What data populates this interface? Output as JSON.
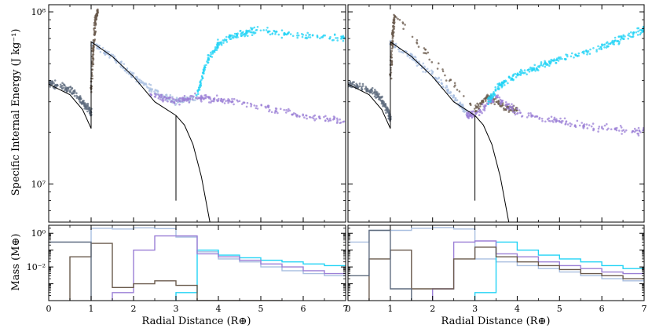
{
  "figure": {
    "ylabel_top": "Specific Internal Energy (J kg⁻¹)",
    "ylabel_bottom": "Mass (M⊕)",
    "xlabel": "Radial Distance (R⊕)"
  },
  "colors": {
    "cyan": "#22d3f5",
    "purple": "#9b7fd6",
    "lightblue": "#a9bfe0",
    "brown": "#6a5a4c",
    "slate": "#5e6b7e",
    "black": "#000000"
  },
  "chart_data": [
    {
      "type": "scatter",
      "panel": "top-left",
      "xlim": [
        0,
        7
      ],
      "ylim": [
        6000000,
        110000000
      ],
      "yscale": "log",
      "ylabel": "Specific Internal Energy (J kg⁻¹)",
      "yticks": [
        {
          "value": 10000000,
          "label": "10⁷"
        },
        {
          "value": 100000000,
          "label": "10⁸"
        }
      ],
      "series": [
        {
          "color_key": "slate",
          "points": [
            [
              0,
              38000000
            ],
            [
              0.3,
              37000000
            ],
            [
              0.6,
              34000000
            ],
            [
              0.85,
              29000000
            ],
            [
              1.0,
              26000000
            ]
          ]
        },
        {
          "color_key": "lightblue",
          "points": [
            [
              1.0,
              66000000
            ],
            [
              1.5,
              55000000
            ],
            [
              2.0,
              42000000
            ],
            [
              2.5,
              34000000
            ],
            [
              3.0,
              30000000
            ],
            [
              3.5,
              32000000
            ]
          ]
        },
        {
          "color_key": "brown",
          "points": [
            [
              1.0,
              35000000
            ],
            [
              1.05,
              60000000
            ],
            [
              1.1,
              90000000
            ],
            [
              1.15,
              100000000
            ]
          ]
        },
        {
          "color_key": "purple",
          "points": [
            [
              2.4,
              33000000
            ],
            [
              3.0,
              30000000
            ],
            [
              3.5,
              32000000
            ],
            [
              4.0,
              31000000
            ],
            [
              5.0,
              28000000
            ],
            [
              6.0,
              25000000
            ],
            [
              7.0,
              23000000
            ]
          ]
        },
        {
          "color_key": "cyan",
          "points": [
            [
              3.5,
              32000000
            ],
            [
              3.7,
              50000000
            ],
            [
              4.0,
              65000000
            ],
            [
              4.5,
              75000000
            ],
            [
              5.0,
              78000000
            ],
            [
              6.0,
              72000000
            ],
            [
              7.0,
              70000000
            ]
          ]
        }
      ],
      "reference_curves": [
        {
          "color_key": "black",
          "points": [
            [
              0,
              38000000
            ],
            [
              0.5,
              33000000
            ],
            [
              0.8,
              27000000
            ],
            [
              1.0,
              21000000
            ],
            [
              1.0,
              67000000
            ],
            [
              1.5,
              55000000
            ],
            [
              2.0,
              42000000
            ],
            [
              2.5,
              30000000
            ],
            [
              3.0,
              25000000
            ],
            [
              3.0,
              8000000
            ]
          ]
        },
        {
          "color_key": "black",
          "points": [
            [
              3.0,
              25000000
            ],
            [
              3.2,
              22000000
            ],
            [
              3.4,
              17000000
            ],
            [
              3.6,
              11000000
            ],
            [
              3.8,
              6000000
            ]
          ]
        }
      ]
    },
    {
      "type": "scatter",
      "panel": "top-right",
      "xlim": [
        0,
        7
      ],
      "ylim": [
        6000000,
        110000000
      ],
      "yscale": "log",
      "series": [
        {
          "color_key": "slate",
          "points": [
            [
              0,
              38000000
            ],
            [
              0.4,
              36000000
            ],
            [
              0.7,
              33000000
            ],
            [
              0.9,
              28000000
            ],
            [
              1.0,
              24000000
            ]
          ]
        },
        {
          "color_key": "lightblue",
          "points": [
            [
              1.0,
              66000000
            ],
            [
              1.5,
              55000000
            ],
            [
              2.0,
              43000000
            ],
            [
              2.5,
              32000000
            ],
            [
              2.8,
              26000000
            ]
          ]
        },
        {
          "color_key": "brown",
          "points": [
            [
              1.0,
              40000000
            ],
            [
              1.05,
              70000000
            ],
            [
              1.1,
              95000000
            ],
            [
              3.0,
              27000000
            ],
            [
              3.3,
              32000000
            ],
            [
              3.7,
              28000000
            ],
            [
              4.0,
              27000000
            ]
          ]
        },
        {
          "color_key": "purple",
          "points": [
            [
              2.8,
              25000000
            ],
            [
              3.0,
              25000000
            ],
            [
              3.5,
              32000000
            ],
            [
              4.0,
              26000000
            ],
            [
              5.0,
              23000000
            ],
            [
              6.0,
              21000000
            ],
            [
              7.0,
              20000000
            ]
          ]
        },
        {
          "color_key": "cyan",
          "points": [
            [
              3.3,
              30000000
            ],
            [
              3.6,
              38000000
            ],
            [
              4.0,
              43000000
            ],
            [
              4.5,
              48000000
            ],
            [
              5.0,
              53000000
            ],
            [
              6.0,
              62000000
            ],
            [
              6.5,
              70000000
            ],
            [
              7.0,
              80000000
            ]
          ]
        }
      ],
      "reference_curves": [
        {
          "color_key": "black",
          "points": [
            [
              0,
              38000000
            ],
            [
              0.5,
              33000000
            ],
            [
              0.8,
              27000000
            ],
            [
              1.0,
              21000000
            ],
            [
              1.0,
              67000000
            ],
            [
              1.5,
              55000000
            ],
            [
              2.0,
              42000000
            ],
            [
              2.5,
              30000000
            ],
            [
              3.0,
              25000000
            ],
            [
              3.0,
              8000000
            ]
          ]
        },
        {
          "color_key": "black",
          "points": [
            [
              3.0,
              25000000
            ],
            [
              3.2,
              22000000
            ],
            [
              3.4,
              17000000
            ],
            [
              3.6,
              11000000
            ],
            [
              3.8,
              6000000
            ]
          ]
        }
      ]
    },
    {
      "type": "line",
      "panel": "bottom-left",
      "step": true,
      "xlim": [
        0,
        7
      ],
      "ylim": [
        0.0001,
        3
      ],
      "yscale": "log",
      "xlabel": "Radial Distance (R⊕)",
      "ylabel": "Mass (M⊕)",
      "xticks": [
        "0",
        "1",
        "2",
        "3",
        "4",
        "5",
        "6",
        "7"
      ],
      "yticks": [
        {
          "value": 0.01,
          "label": "10⁻²"
        },
        {
          "value": 1,
          "label": "10⁰"
        }
      ],
      "bin_edges": [
        0,
        0.5,
        1,
        1.5,
        2,
        2.5,
        3,
        3.5,
        4,
        4.5,
        5,
        5.5,
        6,
        6.5,
        7
      ],
      "series": [
        {
          "color_key": "lightblue",
          "values": [
            0.3,
            0.3,
            2.0,
            1.8,
            2.1,
            1.9,
            0.6,
            0.08,
            0.03,
            0.02,
            0.01,
            0.006,
            0.004,
            0.003
          ]
        },
        {
          "color_key": "cyan",
          "values": [
            null,
            null,
            null,
            null,
            null,
            null,
            0.0003,
            0.1,
            0.05,
            0.035,
            0.025,
            0.02,
            0.015,
            0.012
          ]
        },
        {
          "color_key": "purple",
          "values": [
            null,
            null,
            null,
            0.0003,
            0.1,
            0.7,
            0.7,
            0.06,
            0.04,
            0.025,
            0.015,
            0.01,
            0.006,
            0.004
          ]
        },
        {
          "color_key": "brown",
          "values": [
            null,
            0.04,
            0.25,
            0.0006,
            0.001,
            0.0015,
            0.0008,
            0.0001,
            0.0001,
            0.0001,
            0.0001,
            null,
            null,
            null
          ]
        },
        {
          "color_key": "slate",
          "values": [
            0.3,
            0.3,
            null,
            null,
            null,
            null,
            null,
            null,
            null,
            null,
            null,
            null,
            null,
            null
          ]
        }
      ]
    },
    {
      "type": "line",
      "panel": "bottom-right",
      "step": true,
      "xlim": [
        0,
        7
      ],
      "ylim": [
        0.0001,
        3
      ],
      "yscale": "log",
      "xlabel": "Radial Distance (R⊕)",
      "xticks": [
        "0",
        "1",
        "2",
        "3",
        "4",
        "5",
        "6",
        "7"
      ],
      "bin_edges": [
        0,
        0.5,
        1,
        1.5,
        2,
        2.5,
        3,
        3.5,
        4,
        4.5,
        5,
        5.5,
        6,
        6.5,
        7
      ],
      "series": [
        {
          "color_key": "lightblue",
          "values": [
            0.3,
            1.5,
            1.5,
            2.0,
            2.2,
            1.8,
            0.03,
            0.02,
            0.012,
            0.008,
            0.005,
            0.003,
            0.002,
            0.0015
          ]
        },
        {
          "color_key": "cyan",
          "values": [
            null,
            null,
            null,
            null,
            null,
            null,
            0.0003,
            0.3,
            0.1,
            0.05,
            0.03,
            0.02,
            0.012,
            0.008
          ]
        },
        {
          "color_key": "purple",
          "values": [
            null,
            null,
            null,
            null,
            0.0005,
            0.3,
            0.35,
            0.06,
            0.04,
            0.02,
            0.012,
            0.008,
            0.005,
            0.004
          ]
        },
        {
          "color_key": "brown",
          "values": [
            null,
            0.03,
            0.1,
            0.0005,
            0.0005,
            0.03,
            0.15,
            0.04,
            0.02,
            0.012,
            0.007,
            0.004,
            0.003,
            0.002
          ]
        },
        {
          "color_key": "slate",
          "values": [
            0.003,
            1.5,
            0.0005,
            null,
            null,
            null,
            null,
            null,
            null,
            null,
            null,
            null,
            null,
            null
          ]
        }
      ]
    }
  ]
}
